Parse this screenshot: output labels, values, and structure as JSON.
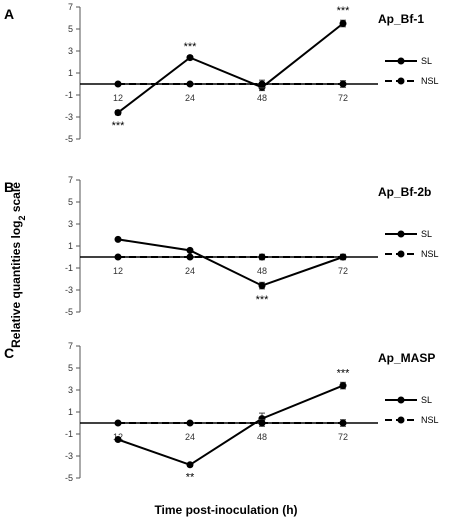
{
  "figure": {
    "y_axis_label": "Relative quantities log",
    "y_axis_label_sub": "2",
    "y_axis_label_suffix": " scale",
    "x_axis_label": "Time post-inoculation (h)"
  },
  "chart_data": [
    {
      "type": "line",
      "panel": "A",
      "title": "Ap_Bf-1",
      "x": [
        12,
        24,
        48,
        72
      ],
      "ylim": [
        -5,
        7
      ],
      "yticks": [
        7,
        5,
        3,
        1,
        -1,
        -3,
        -5
      ],
      "series": [
        {
          "name": "SL",
          "values": [
            -2.6,
            2.4,
            -0.3,
            5.5
          ],
          "errors": [
            0.2,
            0.15,
            0.3,
            0.3
          ],
          "style": "solid"
        },
        {
          "name": "NSL",
          "values": [
            0,
            0,
            0,
            0
          ],
          "errors": [
            0.1,
            0.1,
            0.35,
            0.3
          ],
          "style": "dashed"
        }
      ],
      "annotations": [
        {
          "x": 12,
          "text": "***",
          "position": "below"
        },
        {
          "x": 24,
          "text": "***",
          "position": "above"
        },
        {
          "x": 72,
          "text": "***",
          "position": "above"
        }
      ]
    },
    {
      "type": "line",
      "panel": "B",
      "title": "Ap_Bf-2b",
      "x": [
        12,
        24,
        48,
        72
      ],
      "ylim": [
        -5,
        7
      ],
      "yticks": [
        7,
        5,
        3,
        1,
        -1,
        -3,
        -5
      ],
      "series": [
        {
          "name": "SL",
          "values": [
            1.6,
            0.6,
            -2.6,
            0.0
          ],
          "errors": [
            0.1,
            0.1,
            0.3,
            0.2
          ],
          "style": "solid"
        },
        {
          "name": "NSL",
          "values": [
            0,
            0,
            0,
            0
          ],
          "errors": [
            0.1,
            0.1,
            0.25,
            0.25
          ],
          "style": "dashed"
        }
      ],
      "annotations": [
        {
          "x": 48,
          "text": "***",
          "position": "below"
        }
      ]
    },
    {
      "type": "line",
      "panel": "C",
      "title": "Ap_MASP",
      "x": [
        12,
        24,
        48,
        72
      ],
      "ylim": [
        -5,
        7
      ],
      "yticks": [
        7,
        5,
        3,
        1,
        -1,
        -3,
        -5
      ],
      "series": [
        {
          "name": "SL",
          "values": [
            -1.5,
            -3.8,
            0.4,
            3.4
          ],
          "errors": [
            0.1,
            0.15,
            0.5,
            0.3
          ],
          "style": "solid"
        },
        {
          "name": "NSL",
          "values": [
            0,
            0,
            0,
            0
          ],
          "errors": [
            0.1,
            0.1,
            0.3,
            0.3
          ],
          "style": "dashed"
        }
      ],
      "annotations": [
        {
          "x": 24,
          "text": "**",
          "position": "below"
        },
        {
          "x": 72,
          "text": "***",
          "position": "above"
        }
      ]
    }
  ]
}
